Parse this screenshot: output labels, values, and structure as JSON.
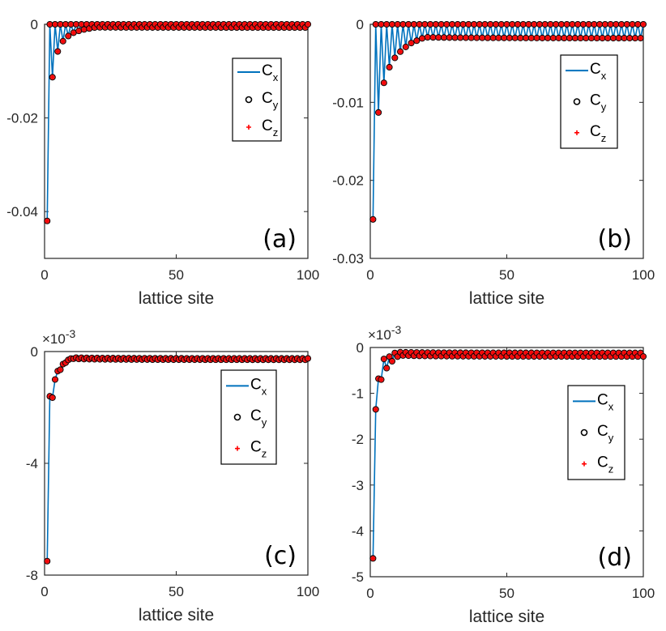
{
  "colors": {
    "line": "#0072BD",
    "marker_fill": "#E31A1C",
    "marker_edge": "#000000",
    "plus": "#FF0000",
    "axis": "#262626"
  },
  "legend": {
    "entries": [
      {
        "base": "C",
        "sub": "x",
        "marker": "line"
      },
      {
        "base": "C",
        "sub": "y",
        "marker": "circle"
      },
      {
        "base": "C",
        "sub": "z",
        "marker": "plus"
      }
    ]
  },
  "chart_data": [
    {
      "type": "line",
      "panel": "(a)",
      "xlabel": "lattice site",
      "ylabel": "",
      "xlim": [
        0,
        100
      ],
      "ylim": [
        -0.05,
        0
      ],
      "xticks": [
        0,
        50,
        100
      ],
      "yticks": [
        0,
        -0.02,
        -0.04
      ],
      "ytick_labels": [
        "0",
        "-0.02",
        "-0.04"
      ],
      "y_exponent": "",
      "decay": "odd sites negative (first -0.042, third -0.0113, then decaying), even sites ~0",
      "x": [
        1,
        2,
        3,
        4,
        5,
        6,
        7,
        8,
        9,
        10,
        11,
        12,
        13,
        14,
        15,
        16,
        17,
        18,
        19,
        20
      ],
      "series": [
        {
          "name": "C_x",
          "values": [
            -0.042,
            0,
            -0.0113,
            0,
            -0.0058,
            0,
            -0.0036,
            0,
            -0.0025,
            0,
            -0.0018,
            0,
            -0.0014,
            0,
            -0.0011,
            0,
            -0.0009,
            0,
            -0.0007,
            0
          ]
        }
      ],
      "legend_position": "right"
    },
    {
      "type": "line",
      "panel": "(b)",
      "xlabel": "lattice site",
      "ylabel": "",
      "xlim": [
        0,
        100
      ],
      "ylim": [
        -0.03,
        0
      ],
      "xticks": [
        0,
        50,
        100
      ],
      "yticks": [
        0,
        -0.01,
        -0.02,
        -0.03
      ],
      "ytick_labels": [
        "0",
        "-0.01",
        "-0.02",
        "-0.03"
      ],
      "y_exponent": "",
      "x": [
        1,
        2,
        3,
        4,
        5,
        6,
        7,
        8,
        9,
        10,
        11,
        12,
        13,
        14,
        15,
        16,
        17,
        18,
        19,
        20
      ],
      "series": [
        {
          "name": "C_x",
          "values": [
            -0.025,
            0,
            -0.0113,
            0,
            -0.0075,
            0,
            -0.0055,
            0,
            -0.0043,
            0,
            -0.0035,
            0,
            -0.0029,
            0,
            -0.0024,
            0,
            -0.0021,
            0,
            -0.0018,
            0
          ]
        }
      ],
      "legend_position": "top-right"
    },
    {
      "type": "line",
      "panel": "(c)",
      "xlabel": "lattice site",
      "ylabel": "",
      "xlim": [
        0,
        100
      ],
      "ylim": [
        -8,
        0
      ],
      "xticks": [
        0,
        50,
        100
      ],
      "yticks": [
        0,
        -4,
        -8
      ],
      "ytick_labels": [
        "0",
        "-4",
        "-8"
      ],
      "y_exponent": "×10-3",
      "x": [
        1,
        2,
        3,
        4,
        5,
        6,
        7,
        8,
        9,
        10
      ],
      "series": [
        {
          "name": "C_x",
          "values": [
            -7.5,
            -1.6,
            -1.65,
            -1.0,
            -0.7,
            -0.65,
            -0.45,
            -0.4,
            -0.3,
            -0.25
          ]
        }
      ],
      "legend_position": "top-right"
    },
    {
      "type": "line",
      "panel": "(d)",
      "xlabel": "lattice site",
      "ylabel": "",
      "xlim": [
        0,
        100
      ],
      "ylim": [
        -5,
        0
      ],
      "xticks": [
        0,
        50,
        100
      ],
      "yticks": [
        0,
        -1,
        -2,
        -3,
        -4,
        -5
      ],
      "ytick_labels": [
        "0",
        "-1",
        "-2",
        "-3",
        "-4",
        "-5"
      ],
      "y_exponent": "×10-3",
      "x": [
        1,
        2,
        3,
        4,
        5,
        6,
        7,
        8,
        9,
        10
      ],
      "series": [
        {
          "name": "C_x",
          "values": [
            -4.6,
            -1.35,
            -0.68,
            -0.7,
            -0.25,
            -0.45,
            -0.2,
            -0.3,
            -0.12,
            -0.2
          ]
        }
      ],
      "legend_position": "right"
    }
  ]
}
